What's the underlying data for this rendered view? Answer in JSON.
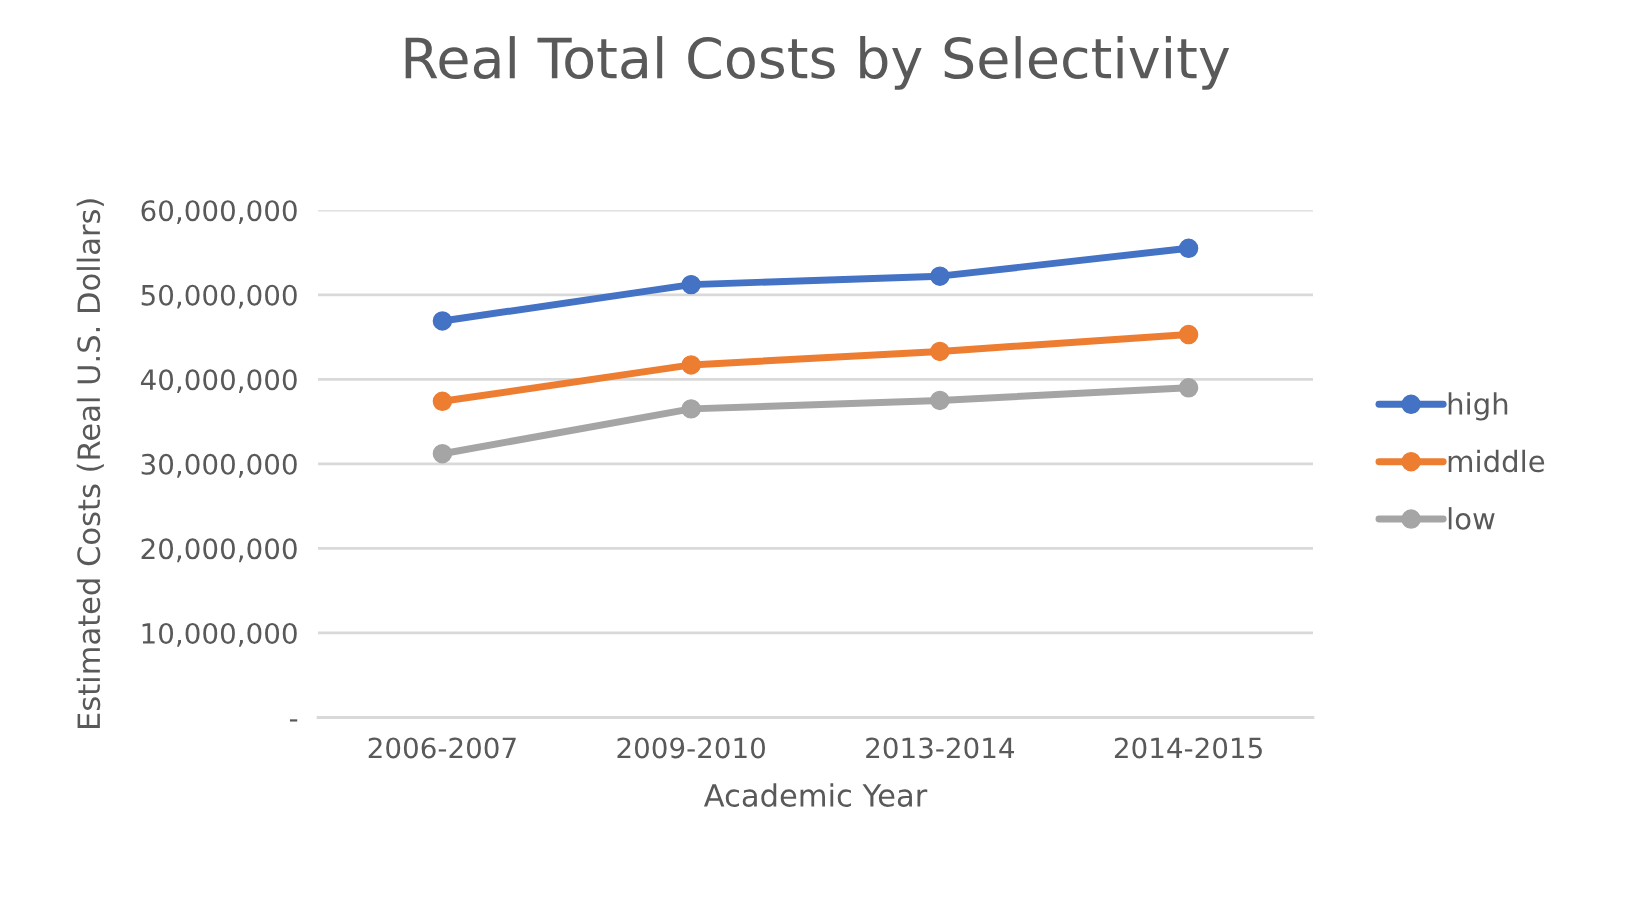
{
  "chart_data": {
    "type": "line",
    "title": "Real Total Costs by Selectivity",
    "xlabel": "Academic Year",
    "ylabel": "Estimated Costs (Real U.S. Dollars)",
    "categories": [
      "2006-2007",
      "2009-2010",
      "2013-2014",
      "2014-2015"
    ],
    "series": [
      {
        "name": "high",
        "color": "#4472c4",
        "values": [
          46900000,
          51200000,
          52200000,
          55500000
        ]
      },
      {
        "name": "middle",
        "color": "#ed7d31",
        "values": [
          37400000,
          41700000,
          43300000,
          45300000
        ]
      },
      {
        "name": "low",
        "color": "#a5a5a5",
        "values": [
          31200000,
          36500000,
          37500000,
          39000000
        ]
      }
    ],
    "ylim": [
      0,
      60000000
    ],
    "yticks": [
      {
        "value": 0,
        "label": "-"
      },
      {
        "value": 10000000,
        "label": "10,000,000"
      },
      {
        "value": 20000000,
        "label": "20,000,000"
      },
      {
        "value": 30000000,
        "label": "30,000,000"
      },
      {
        "value": 40000000,
        "label": "40,000,000"
      },
      {
        "value": 50000000,
        "label": "50,000,000"
      },
      {
        "value": 60000000,
        "label": "60,000,000"
      }
    ],
    "grid": "y",
    "legend": "right",
    "marker": "circle",
    "line_style": "solid"
  }
}
